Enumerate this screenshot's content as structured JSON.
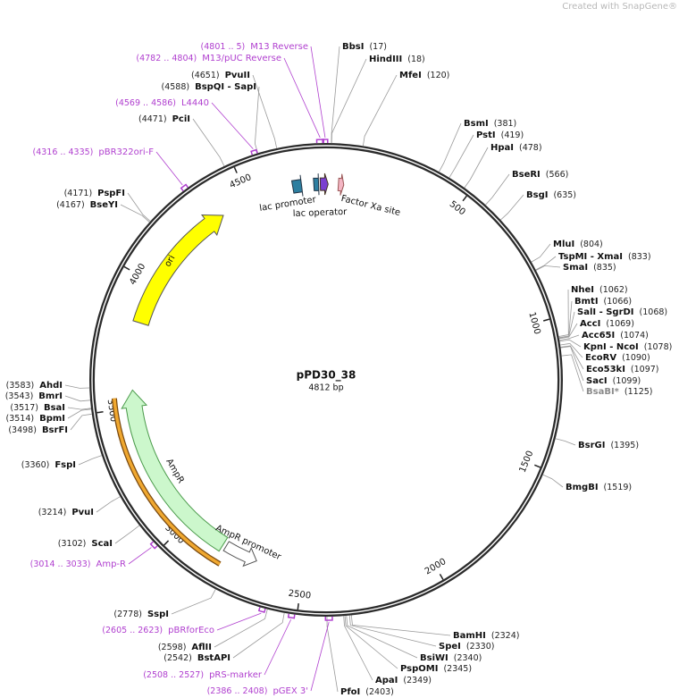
{
  "watermark": "Created with SnapGene®",
  "plasmid": {
    "name": "pPD30_38",
    "length": {
      "value": 4812,
      "label": "4812 bp"
    }
  },
  "ticks": [
    500,
    1000,
    1500,
    2000,
    2500,
    3000,
    3500,
    4000,
    4500
  ],
  "enzymes": [
    {
      "name": "BbsI",
      "position": {
        "value": 17,
        "label": "(17)"
      }
    },
    {
      "name": "HindIII",
      "position": {
        "value": 18,
        "label": "(18)"
      }
    },
    {
      "name": "MfeI",
      "position": {
        "value": 120,
        "label": "(120)"
      }
    },
    {
      "name": "BsmI",
      "position": {
        "value": 381,
        "label": "(381)"
      }
    },
    {
      "name": "PstI",
      "position": {
        "value": 419,
        "label": "(419)"
      }
    },
    {
      "name": "HpaI",
      "position": {
        "value": 478,
        "label": "(478)"
      }
    },
    {
      "name": "BseRI",
      "position": {
        "value": 566,
        "label": "(566)"
      }
    },
    {
      "name": "BsgI",
      "position": {
        "value": 635,
        "label": "(635)"
      }
    },
    {
      "name": "MluI",
      "position": {
        "value": 804,
        "label": "(804)"
      }
    },
    {
      "name": "TspMI - XmaI",
      "position": {
        "value": 833,
        "label": "(833)"
      }
    },
    {
      "name": "SmaI",
      "position": {
        "value": 835,
        "label": "(835)"
      }
    },
    {
      "name": "NheI",
      "position": {
        "value": 1062,
        "label": "(1062)"
      }
    },
    {
      "name": "BmtI",
      "position": {
        "value": 1066,
        "label": "(1066)"
      }
    },
    {
      "name": "SalI - SgrDI",
      "position": {
        "value": 1068,
        "label": "(1068)"
      }
    },
    {
      "name": "AccI",
      "position": {
        "value": 1069,
        "label": "(1069)"
      }
    },
    {
      "name": "Acc65I",
      "position": {
        "value": 1074,
        "label": "(1074)"
      }
    },
    {
      "name": "KpnI - NcoI",
      "position": {
        "value": 1078,
        "label": "(1078)"
      }
    },
    {
      "name": "EcoRV",
      "position": {
        "value": 1090,
        "label": "(1090)"
      }
    },
    {
      "name": "Eco53kI",
      "position": {
        "value": 1097,
        "label": "(1097)"
      }
    },
    {
      "name": "SacI",
      "position": {
        "value": 1099,
        "label": "(1099)"
      }
    },
    {
      "name": "BsaBI*",
      "position": {
        "value": 1125,
        "label": "(1125)"
      },
      "color": "#8a8a8a"
    },
    {
      "name": "BsrGI",
      "position": {
        "value": 1395,
        "label": "(1395)"
      }
    },
    {
      "name": "BmgBI",
      "position": {
        "value": 1519,
        "label": "(1519)"
      }
    },
    {
      "name": "BamHI",
      "position": {
        "value": 2324,
        "label": "(2324)"
      }
    },
    {
      "name": "SpeI",
      "position": {
        "value": 2330,
        "label": "(2330)"
      }
    },
    {
      "name": "BsiWI",
      "position": {
        "value": 2340,
        "label": "(2340)"
      }
    },
    {
      "name": "PspOMI",
      "position": {
        "value": 2345,
        "label": "(2345)"
      }
    },
    {
      "name": "ApaI",
      "position": {
        "value": 2349,
        "label": "(2349)"
      }
    },
    {
      "name": "PfoI",
      "position": {
        "value": 2403,
        "label": "(2403)"
      }
    },
    {
      "name": "PvuII",
      "position": {
        "value": 4651,
        "label": "(4651)"
      }
    },
    {
      "name": "BspQI - SapI",
      "position": {
        "value": 4588,
        "label": "(4588)"
      }
    },
    {
      "name": "PciI",
      "position": {
        "value": 4471,
        "label": "(4471)"
      }
    },
    {
      "name": "PspFI",
      "position": {
        "value": 4171,
        "label": "(4171)"
      }
    },
    {
      "name": "BseYI",
      "position": {
        "value": 4167,
        "label": "(4167)"
      }
    },
    {
      "name": "AhdI",
      "position": {
        "value": 3583,
        "label": "(3583)"
      }
    },
    {
      "name": "BmrI",
      "position": {
        "value": 3543,
        "label": "(3543)"
      }
    },
    {
      "name": "BsaI",
      "position": {
        "value": 3517,
        "label": "(3517)"
      }
    },
    {
      "name": "BpmI",
      "position": {
        "value": 3514,
        "label": "(3514)"
      }
    },
    {
      "name": "BsrFI",
      "position": {
        "value": 3498,
        "label": "(3498)"
      }
    },
    {
      "name": "FspI",
      "position": {
        "value": 3360,
        "label": "(3360)"
      }
    },
    {
      "name": "PvuI",
      "position": {
        "value": 3214,
        "label": "(3214)"
      }
    },
    {
      "name": "ScaI",
      "position": {
        "value": 3102,
        "label": "(3102)"
      }
    },
    {
      "name": "SspI",
      "position": {
        "value": 2778,
        "label": "(2778)"
      }
    },
    {
      "name": "AflII",
      "position": {
        "value": 2598,
        "label": "(2598)"
      }
    },
    {
      "name": "BstAPI",
      "position": {
        "value": 2542,
        "label": "(2542)"
      }
    }
  ],
  "primers": [
    {
      "name": "M13 Reverse",
      "start": 4801,
      "end": 5,
      "range": "(4801 .. 5)"
    },
    {
      "name": "M13/pUC Reverse",
      "start": 4782,
      "end": 4804,
      "range": "(4782 .. 4804)"
    },
    {
      "name": "L4440",
      "start": 4569,
      "end": 4586,
      "range": "(4569 .. 4586)"
    },
    {
      "name": "pBR322ori-F",
      "start": 4316,
      "end": 4335,
      "range": "(4316 .. 4335)"
    },
    {
      "name": "Amp-R",
      "start": 3014,
      "end": 3033,
      "range": "(3014 .. 3033)"
    },
    {
      "name": "pBRforEco",
      "start": 2605,
      "end": 2623,
      "range": "(2605 .. 2623)"
    },
    {
      "name": "pRS-marker",
      "start": 2508,
      "end": 2527,
      "range": "(2508 .. 2527)"
    },
    {
      "name": "pGEX 3'",
      "start": 2386,
      "end": 2408,
      "range": "(2386 .. 2408)"
    }
  ],
  "features": [
    {
      "name": "ori"
    },
    {
      "name": "AmpR"
    },
    {
      "name": "AmpR promoter"
    },
    {
      "name": "lac promoter"
    },
    {
      "name": "lac operator"
    },
    {
      "name": "Factor Xa site"
    }
  ]
}
